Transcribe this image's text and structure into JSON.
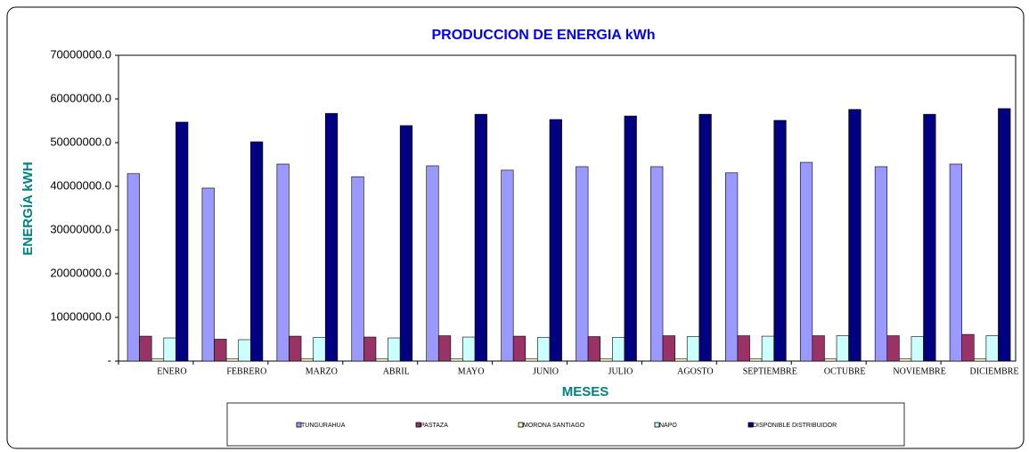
{
  "chart_data": {
    "type": "bar",
    "title": "PRODUCCION DE ENERGIA kWh",
    "x_label": "MESES",
    "y_label": "ENERGÍA kWH",
    "categories": [
      "ENERO",
      "FEBRERO",
      "MARZO",
      "ABRIL",
      "MAYO",
      "JUNIO",
      "JULIO",
      "AGOSTO",
      "SEPTIEMBRE",
      "OCTUBRE",
      "NOVIEMBRE",
      "DICIEMBRE"
    ],
    "series": [
      {
        "name": "TUNGURAHUA",
        "color": "#9999ff",
        "values": [
          42900000,
          39600000,
          45100000,
          42200000,
          44700000,
          43700000,
          44500000,
          44500000,
          43100000,
          45500000,
          44500000,
          45100000
        ]
      },
      {
        "name": "PASTAZA",
        "color": "#993366",
        "values": [
          5700000,
          5000000,
          5700000,
          5500000,
          5800000,
          5700000,
          5600000,
          5800000,
          5800000,
          5800000,
          5800000,
          6100000
        ]
      },
      {
        "name": "MORONA SANTIAGO",
        "color": "#ffffcc",
        "values": [
          500000,
          500000,
          500000,
          500000,
          500000,
          500000,
          500000,
          500000,
          500000,
          500000,
          500000,
          500000
        ]
      },
      {
        "name": "NAPO",
        "color": "#ccffff",
        "values": [
          5300000,
          4900000,
          5400000,
          5300000,
          5500000,
          5400000,
          5400000,
          5600000,
          5700000,
          5800000,
          5600000,
          5800000
        ]
      },
      {
        "name": "DISPONIBLE DISTRIBUIDOR",
        "color": "#000080",
        "values": [
          54700000,
          50200000,
          56700000,
          53900000,
          56500000,
          55300000,
          56100000,
          56500000,
          55100000,
          57600000,
          56500000,
          57800000
        ]
      }
    ],
    "ylim": [
      0,
      70000000
    ],
    "yticks": [
      {
        "value": 0,
        "label": "-"
      },
      {
        "value": 10000000,
        "label": "10000000.0"
      },
      {
        "value": 20000000,
        "label": "20000000.0"
      },
      {
        "value": 30000000,
        "label": "30000000.0"
      },
      {
        "value": 40000000,
        "label": "40000000.0"
      },
      {
        "value": 50000000,
        "label": "50000000.0"
      },
      {
        "value": 60000000,
        "label": "60000000.0"
      },
      {
        "value": 70000000,
        "label": "70000000.0"
      }
    ],
    "grid": false
  }
}
